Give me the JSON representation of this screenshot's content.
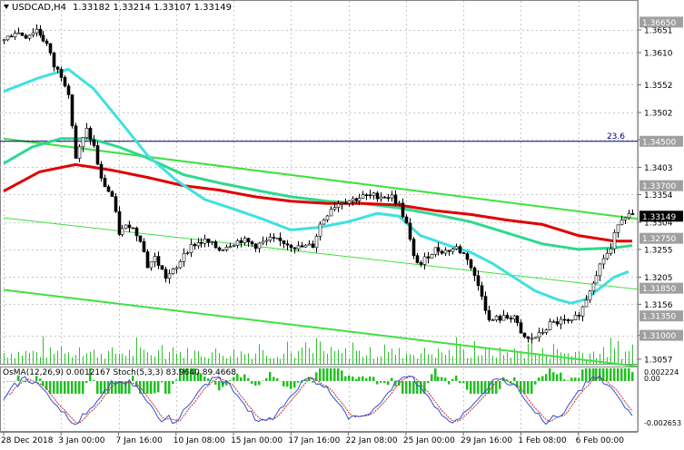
{
  "window": {
    "symbol_label": "USDCAD,H4",
    "ohlc": "1.33182 1.33214 1.33107 1.33149"
  },
  "indicator_label": "OsMA(12,26,9) 0.0012167  Stoch(5,3,3) 83.9640 89.4668",
  "colors": {
    "background": "#ffffff",
    "grid": "#c8c8c8",
    "candle": "#000000",
    "ema_red": "#e00000",
    "ema_cyan": "#40e0e0",
    "ema_green": "#30d890",
    "trend_green": "#40e040",
    "fib_blue": "#000080",
    "osma": "#20c020",
    "stoch_main": "#3050d0",
    "stoch_signal": "#c03030"
  },
  "chart_data": {
    "type": "candlestick",
    "symbol": "USDCAD",
    "timeframe": "H4",
    "ylim": [
      1.3047,
      1.3682
    ],
    "xlim": [
      0,
      175
    ],
    "price_ticks": [
      1.3651,
      1.361,
      1.3552,
      1.3502,
      1.3453,
      1.3403,
      1.3354,
      1.3304,
      1.3255,
      1.3205,
      1.3156,
      1.31,
      1.3057
    ],
    "price_tags": [
      {
        "text": "1.36650",
        "value": 1.3665,
        "style": "gray"
      },
      {
        "text": "1.34500",
        "value": 1.345,
        "style": "gray"
      },
      {
        "text": "1.33700",
        "value": 1.337,
        "style": "gray"
      },
      {
        "text": "1.33149",
        "value": 1.33149,
        "style": "current"
      },
      {
        "text": "1.32750",
        "value": 1.3275,
        "style": "gray"
      },
      {
        "text": "1.31850",
        "value": 1.3185,
        "style": "gray"
      },
      {
        "text": "1.31350",
        "value": 1.3135,
        "style": "gray"
      },
      {
        "text": "1.31000",
        "value": 1.31,
        "style": "gray"
      }
    ],
    "time_labels": [
      {
        "text": "28 Dec 2018",
        "i": 0
      },
      {
        "text": "3 Jan 00:00",
        "i": 16
      },
      {
        "text": "7 Jan 16:00",
        "i": 32
      },
      {
        "text": "10 Jan 08:00",
        "i": 48
      },
      {
        "text": "15 Jan 00:00",
        "i": 64
      },
      {
        "text": "17 Jan 16:00",
        "i": 80
      },
      {
        "text": "22 Jan 08:00",
        "i": 96
      },
      {
        "text": "25 Jan 00:00",
        "i": 112
      },
      {
        "text": "29 Jan 16:00",
        "i": 128
      },
      {
        "text": "1 Feb 08:00",
        "i": 144
      },
      {
        "text": "6 Feb 00:00",
        "i": 160
      }
    ],
    "fib_level": {
      "value": 1.345,
      "label": "23.6"
    },
    "close_waypoints": [
      [
        0,
        1.3632
      ],
      [
        3,
        1.3648
      ],
      [
        6,
        1.364
      ],
      [
        9,
        1.3652
      ],
      [
        12,
        1.3625
      ],
      [
        14,
        1.3585
      ],
      [
        16,
        1.357
      ],
      [
        18,
        1.354
      ],
      [
        20,
        1.342
      ],
      [
        23,
        1.347
      ],
      [
        25,
        1.344
      ],
      [
        27,
        1.338
      ],
      [
        30,
        1.335
      ],
      [
        32,
        1.3285
      ],
      [
        35,
        1.33
      ],
      [
        38,
        1.3275
      ],
      [
        40,
        1.3225
      ],
      [
        42,
        1.324
      ],
      [
        45,
        1.3205
      ],
      [
        48,
        1.322
      ],
      [
        50,
        1.325
      ],
      [
        53,
        1.3265
      ],
      [
        56,
        1.327
      ],
      [
        60,
        1.3255
      ],
      [
        63,
        1.3265
      ],
      [
        66,
        1.3272
      ],
      [
        70,
        1.3262
      ],
      [
        74,
        1.3272
      ],
      [
        78,
        1.3268
      ],
      [
        82,
        1.3258
      ],
      [
        86,
        1.3262
      ],
      [
        88,
        1.33
      ],
      [
        91,
        1.333
      ],
      [
        94,
        1.3342
      ],
      [
        97,
        1.3345
      ],
      [
        100,
        1.335
      ],
      [
        104,
        1.3352
      ],
      [
        108,
        1.335
      ],
      [
        110,
        1.3335
      ],
      [
        112,
        1.33
      ],
      [
        114,
        1.324
      ],
      [
        116,
        1.3228
      ],
      [
        118,
        1.3245
      ],
      [
        120,
        1.3255
      ],
      [
        123,
        1.3252
      ],
      [
        126,
        1.3258
      ],
      [
        129,
        1.324
      ],
      [
        131,
        1.3205
      ],
      [
        133,
        1.3175
      ],
      [
        135,
        1.3125
      ],
      [
        137,
        1.313
      ],
      [
        140,
        1.3132
      ],
      [
        142,
        1.3135
      ],
      [
        144,
        1.31
      ],
      [
        146,
        1.3092
      ],
      [
        149,
        1.31
      ],
      [
        152,
        1.312
      ],
      [
        155,
        1.3125
      ],
      [
        158,
        1.3122
      ],
      [
        161,
        1.315
      ],
      [
        164,
        1.32
      ],
      [
        167,
        1.324
      ],
      [
        169,
        1.3255
      ],
      [
        171,
        1.3305
      ],
      [
        173,
        1.3318
      ],
      [
        175,
        1.33149
      ]
    ],
    "ema_red": [
      [
        0,
        1.336
      ],
      [
        10,
        1.3395
      ],
      [
        20,
        1.3408
      ],
      [
        30,
        1.3398
      ],
      [
        40,
        1.3385
      ],
      [
        50,
        1.337
      ],
      [
        60,
        1.3362
      ],
      [
        70,
        1.335
      ],
      [
        80,
        1.3342
      ],
      [
        90,
        1.3338
      ],
      [
        100,
        1.3338
      ],
      [
        110,
        1.3335
      ],
      [
        120,
        1.3325
      ],
      [
        130,
        1.3318
      ],
      [
        140,
        1.3308
      ],
      [
        150,
        1.33
      ],
      [
        160,
        1.328
      ],
      [
        170,
        1.327
      ],
      [
        175,
        1.327
      ]
    ],
    "ema_cyan": [
      [
        0,
        1.354
      ],
      [
        10,
        1.3565
      ],
      [
        18,
        1.358
      ],
      [
        25,
        1.3545
      ],
      [
        32,
        1.349
      ],
      [
        40,
        1.3425
      ],
      [
        48,
        1.338
      ],
      [
        56,
        1.3345
      ],
      [
        64,
        1.3328
      ],
      [
        72,
        1.331
      ],
      [
        80,
        1.329
      ],
      [
        88,
        1.3295
      ],
      [
        96,
        1.3305
      ],
      [
        104,
        1.332
      ],
      [
        110,
        1.3315
      ],
      [
        116,
        1.328
      ],
      [
        124,
        1.3262
      ],
      [
        130,
        1.325
      ],
      [
        136,
        1.323
      ],
      [
        142,
        1.3205
      ],
      [
        148,
        1.318
      ],
      [
        154,
        1.3165
      ],
      [
        158,
        1.3158
      ],
      [
        162,
        1.3165
      ],
      [
        166,
        1.3185
      ],
      [
        170,
        1.3205
      ],
      [
        174,
        1.3215
      ]
    ],
    "ema_green": [
      [
        0,
        1.341
      ],
      [
        8,
        1.344
      ],
      [
        16,
        1.3455
      ],
      [
        24,
        1.3455
      ],
      [
        32,
        1.344
      ],
      [
        40,
        1.342
      ],
      [
        50,
        1.339
      ],
      [
        60,
        1.3375
      ],
      [
        70,
        1.3362
      ],
      [
        80,
        1.335
      ],
      [
        90,
        1.3342
      ],
      [
        100,
        1.3338
      ],
      [
        110,
        1.333
      ],
      [
        120,
        1.3318
      ],
      [
        130,
        1.3305
      ],
      [
        140,
        1.3285
      ],
      [
        150,
        1.3265
      ],
      [
        160,
        1.3255
      ],
      [
        170,
        1.3258
      ],
      [
        175,
        1.3262
      ]
    ],
    "trendlines": [
      {
        "style": "solid",
        "p1": [
          0,
          1.3455
        ],
        "p2": [
          175,
          1.331
        ]
      },
      {
        "style": "thin",
        "p1": [
          0,
          1.3312
        ],
        "p2": [
          175,
          1.3183
        ]
      },
      {
        "style": "solid",
        "p1": [
          0,
          1.3182
        ],
        "p2": [
          175,
          1.3044
        ]
      }
    ],
    "stoch_range": [
      0,
      100
    ]
  }
}
